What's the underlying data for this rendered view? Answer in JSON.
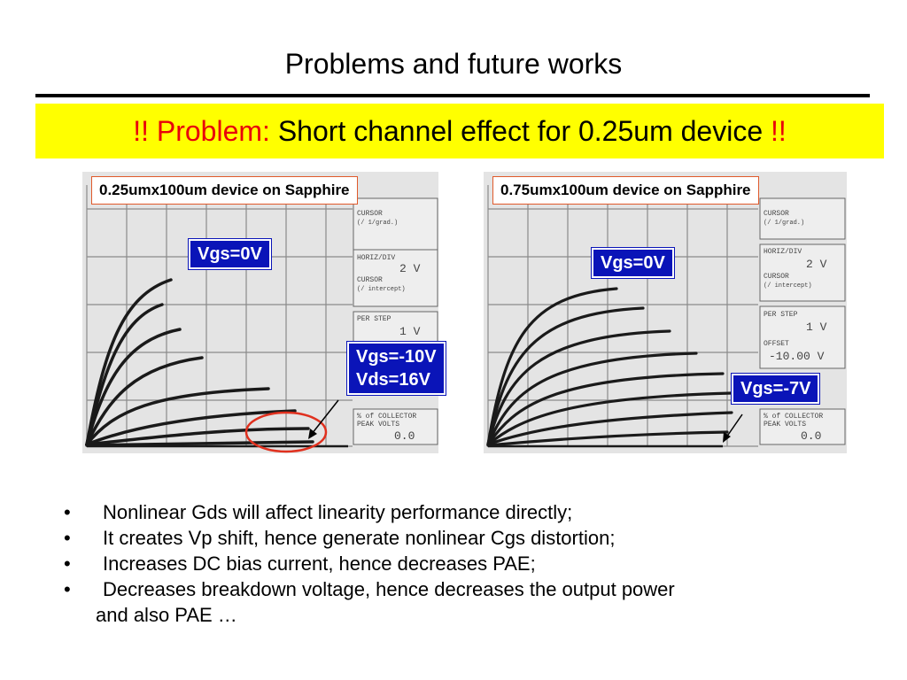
{
  "title": "Problems and future works",
  "problem": {
    "prefix": "!! Problem:",
    "text": " Short channel effect for 0.25um device ",
    "suffix": "!!"
  },
  "left_panel": {
    "caption": "0.25umx100um device on Sapphire",
    "label_top": "Vgs=0V",
    "label_bottom_line1": "Vgs=-10V",
    "label_bottom_line2": "Vds=16V",
    "screen": {
      "cursor1": "CURSOR",
      "cursor1_sub": "(/ 1/grad.)",
      "horiz": "HORIZ/DIV",
      "horiz_val": "2 V",
      "cursor2": "CURSOR",
      "cursor2_sub": "(/ intercept)",
      "per_step": "PER STEP",
      "per_step_val": "1 V",
      "collector": "% of COLLECTOR",
      "peak": "PEAK VOLTS",
      "peak_val": "0.0"
    }
  },
  "right_panel": {
    "caption": "0.75umx100um device on Sapphire",
    "label_top": "Vgs=0V",
    "label_bottom": "Vgs=-7V",
    "screen": {
      "cursor1": "CURSOR",
      "cursor1_sub": "(/ 1/grad.)",
      "horiz": "HORIZ/DIV",
      "horiz_val": "2 V",
      "cursor2": "CURSOR",
      "cursor2_sub": "(/ intercept)",
      "per_step": "PER STEP",
      "per_step_val": "1 V",
      "offset": "OFFSET",
      "offset_val": "-10.00 V",
      "collector": "% of COLLECTOR",
      "peak": "PEAK VOLTS",
      "peak_val": "0.0"
    }
  },
  "bullets": [
    "Nonlinear Gds will affect linearity performance directly;",
    "It creates Vp shift, hence generate nonlinear Cgs distortion;",
    "Increases DC bias current, hence decreases PAE;",
    "Decreases breakdown voltage, hence decreases the output power"
  ],
  "bullet_continuation": "and also PAE …",
  "colors": {
    "highlight": "#ffff00",
    "problem_red": "#e8000b",
    "label_blue": "#0a14b8",
    "circle_red": "#e0301e"
  }
}
